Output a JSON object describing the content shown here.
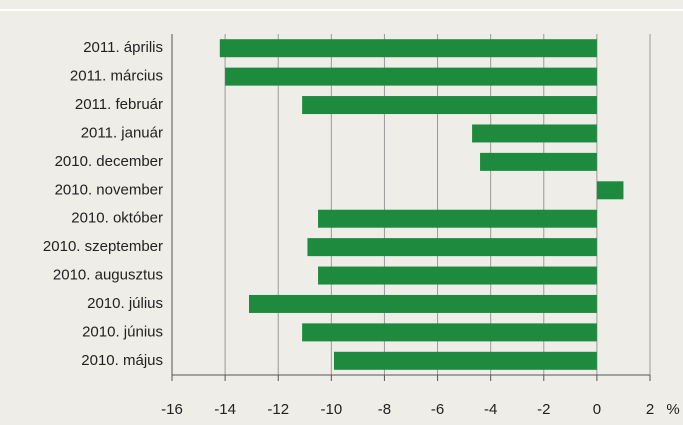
{
  "chart_data": {
    "type": "barh",
    "categories": [
      "2011. április",
      "2011. március",
      "2011. február",
      "2011. január",
      "2010. december",
      "2010. november",
      "2010. október",
      "2010. szeptember",
      "2010. augusztus",
      "2010. július",
      "2010. június",
      "2010. május"
    ],
    "values": [
      -14.2,
      -14.0,
      -11.1,
      -4.7,
      -4.4,
      1.0,
      -10.5,
      -10.9,
      -10.5,
      -13.1,
      -11.1,
      -9.9
    ],
    "color": "#1e8a3e",
    "xlabel": "%",
    "xlim": [
      -16,
      2
    ],
    "xticks": [
      -16,
      -14,
      -12,
      -10,
      -8,
      -6,
      -4,
      -2,
      0,
      2
    ],
    "grid": true
  }
}
